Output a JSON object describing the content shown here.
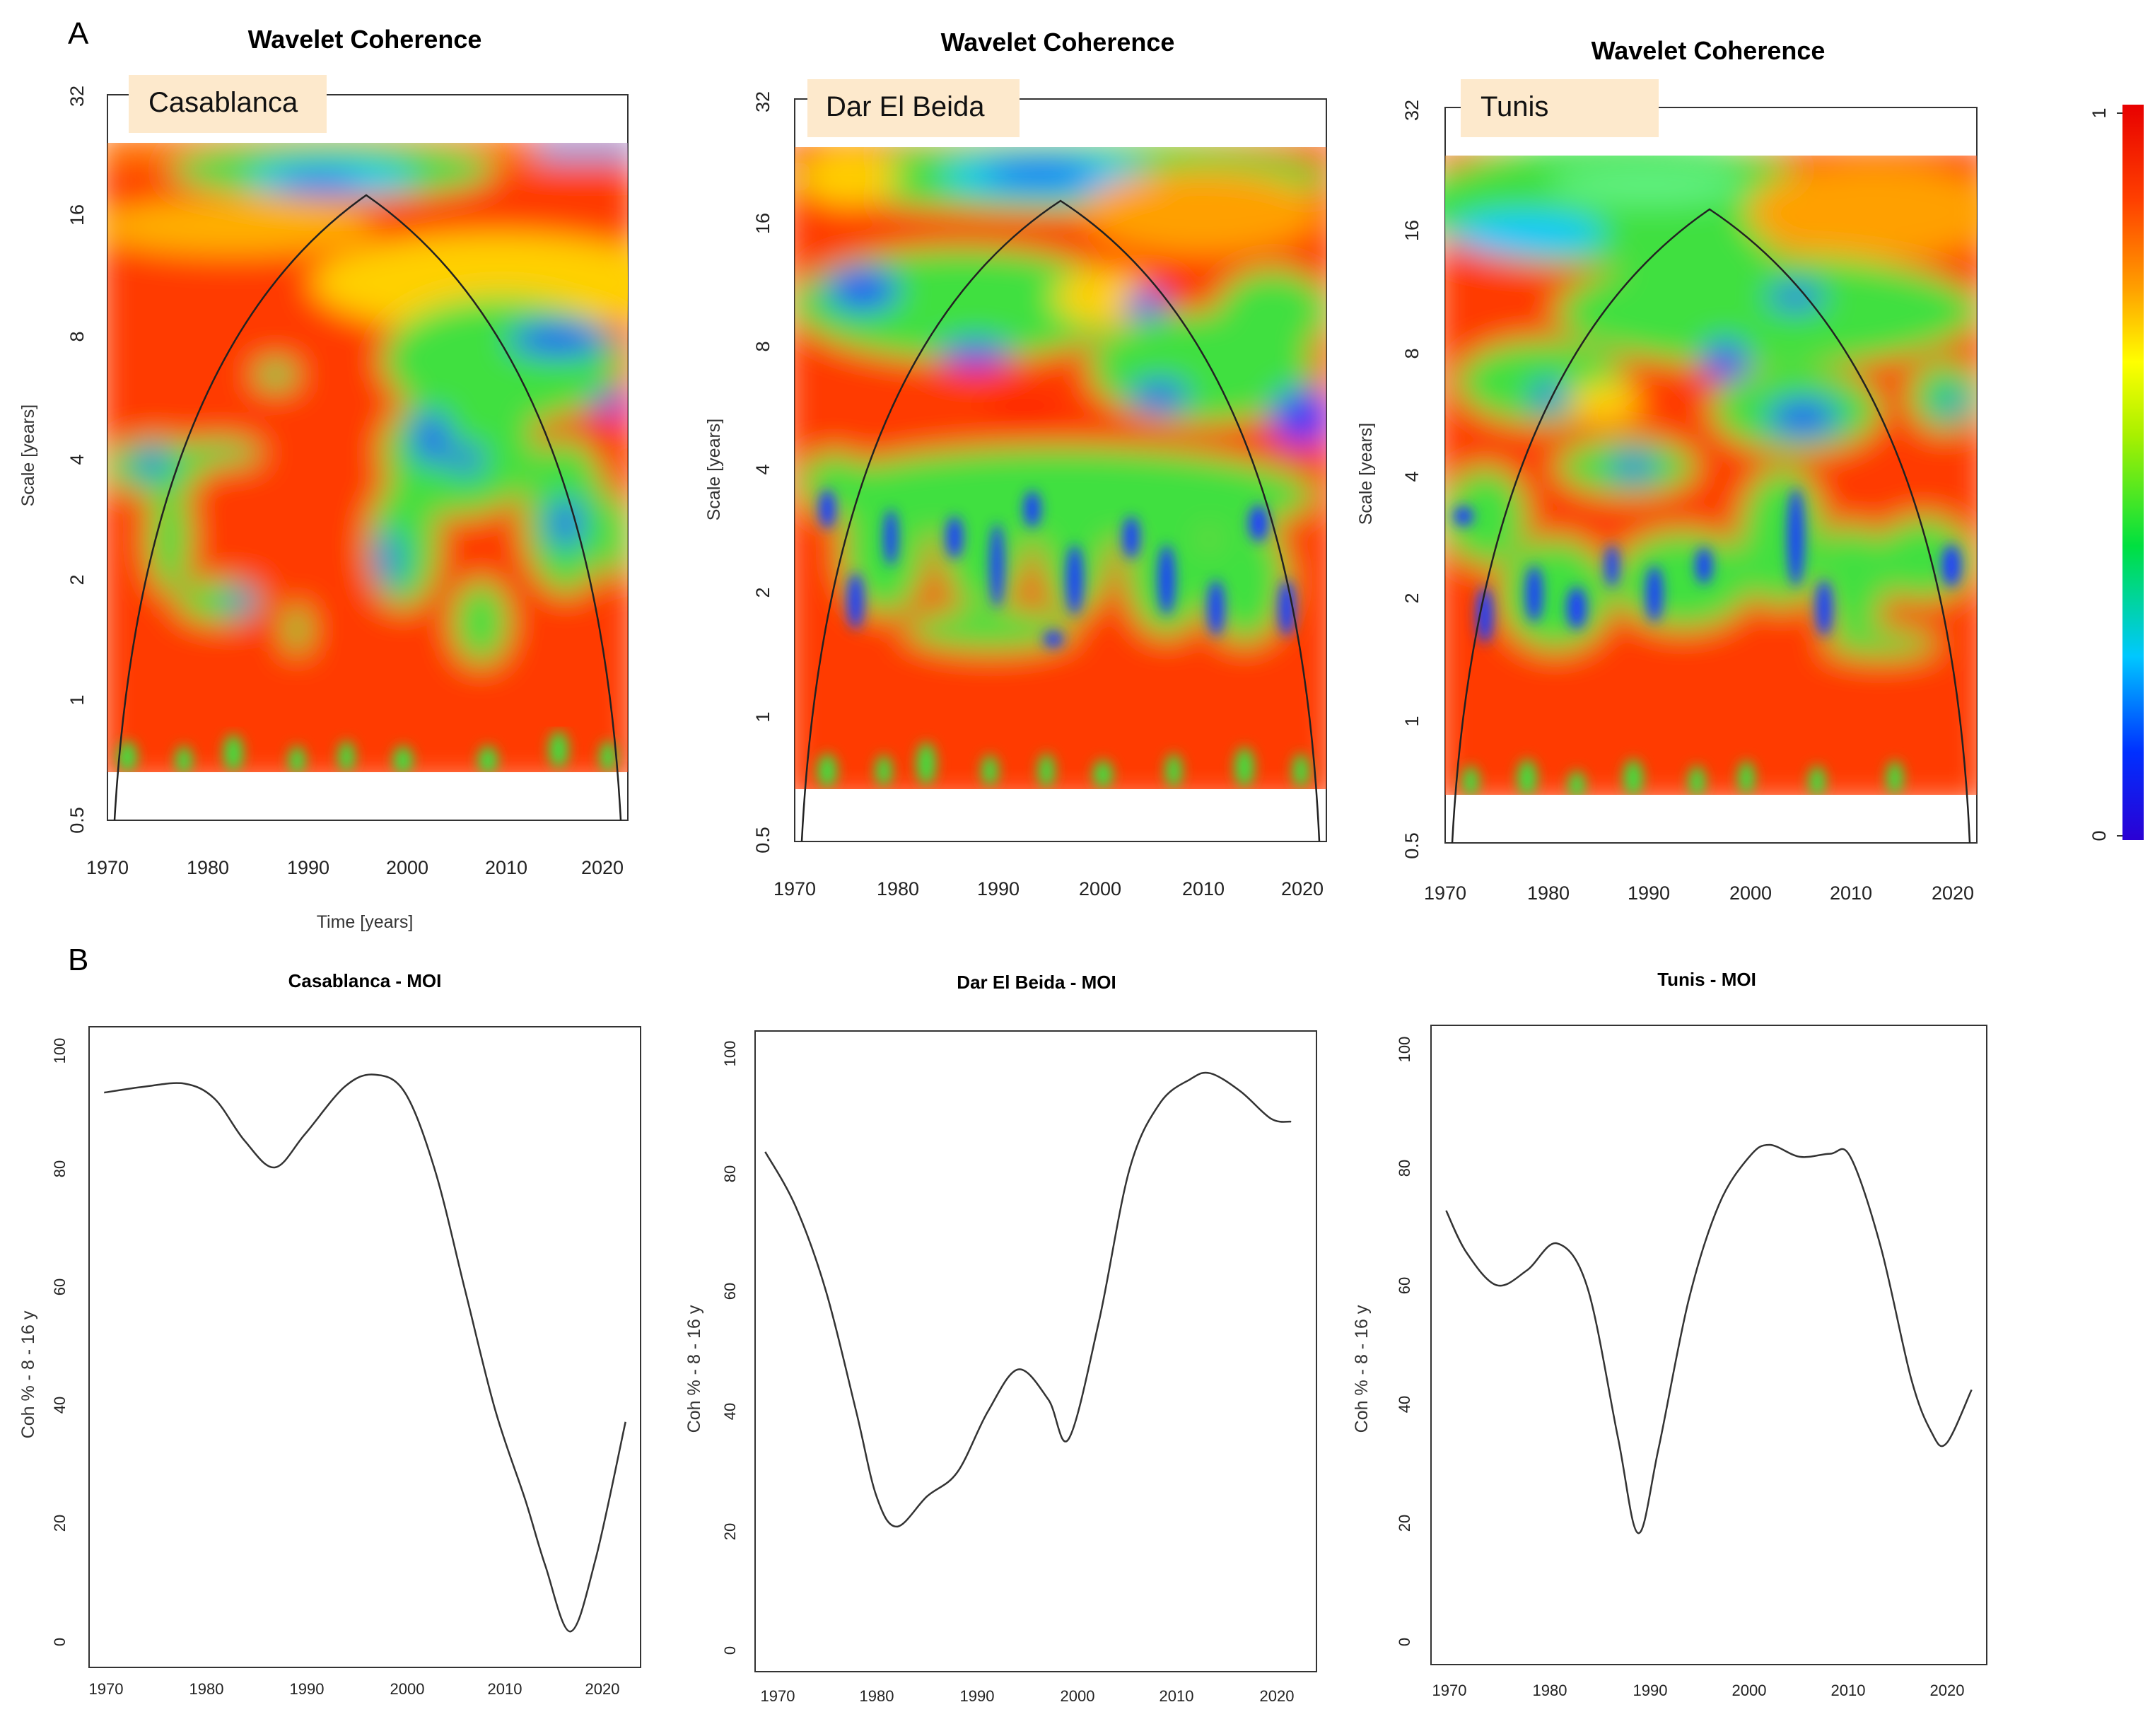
{
  "panel_labels": {
    "a": "A",
    "b": "B"
  },
  "colors": {
    "line": "#333333",
    "city_label_bg": "#fde9cc",
    "colorbar_stops": [
      "#2b00d4",
      "#0030ff",
      "#00c8ff",
      "#00e040",
      "#a8f000",
      "#ffff00",
      "#ffa000",
      "#ff4000",
      "#e80000"
    ]
  },
  "colorbar": {
    "min_label": "0",
    "max_label": "1"
  },
  "chart_data": [
    {
      "type": "heatmap",
      "title": "Wavelet Coherence",
      "label": "Casablanca",
      "xlabel": "Time [years]",
      "ylabel": "Scale [years]",
      "x_ticks": [
        "1970",
        "1980",
        "1990",
        "2000",
        "2010",
        "2020"
      ],
      "y_ticks": [
        "0.5",
        "1",
        "2",
        "4",
        "8",
        "16",
        "32"
      ],
      "xlim": [
        1970,
        2022
      ],
      "ylim": [
        0.5,
        32
      ],
      "cone_of_influence_apex": {
        "year": 1996,
        "scale_years": 18
      },
      "description_values": "coherence 0-1; high (red) at scales below 2 years and around 16 years early; low (blue) near 8 years after 2010 and near 22 years around 1990-2000"
    },
    {
      "type": "heatmap",
      "title": "Wavelet Coherence",
      "label": "Dar El Beida",
      "xlabel": "",
      "ylabel": "Scale [years]",
      "x_ticks": [
        "1970",
        "1980",
        "1990",
        "2000",
        "2010",
        "2020"
      ],
      "y_ticks": [
        "0.5",
        "1",
        "2",
        "4",
        "8",
        "16",
        "32"
      ],
      "xlim": [
        1970,
        2022
      ],
      "ylim": [
        0.5,
        32
      ],
      "cone_of_influence_apex": {
        "year": 1996,
        "scale_years": 17
      }
    },
    {
      "type": "heatmap",
      "title": "Wavelet Coherence",
      "label": "Tunis",
      "xlabel": "",
      "ylabel": "Scale [years]",
      "x_ticks": [
        "1970",
        "1980",
        "1990",
        "2000",
        "2010",
        "2020"
      ],
      "y_ticks": [
        "0.5",
        "1",
        "2",
        "4",
        "8",
        "16",
        "32"
      ],
      "xlim": [
        1970,
        2022
      ],
      "ylim": [
        0.5,
        32
      ],
      "cone_of_influence_apex": {
        "year": 1996,
        "scale_years": 17
      }
    },
    {
      "type": "line",
      "title": "Casablanca - MOI",
      "ylabel": "Coh % - 8 - 16 y",
      "x_ticks": [
        "1970",
        "1980",
        "1990",
        "2000",
        "2010",
        "2020"
      ],
      "y_ticks": [
        "0",
        "20",
        "40",
        "60",
        "80",
        "100"
      ],
      "xlim": [
        1968.5,
        2023.5
      ],
      "ylim": [
        -3,
        104
      ],
      "x": [
        1970,
        1974,
        1978,
        1981,
        1984,
        1987,
        1990,
        1994,
        1997,
        2000,
        2003,
        2006,
        2009,
        2012,
        2014,
        2016.5,
        2019,
        2022
      ],
      "y": [
        93,
        94,
        94.5,
        92,
        85,
        80.5,
        86,
        94,
        96,
        93,
        80,
        60,
        40,
        25,
        14,
        3,
        15,
        38
      ]
    },
    {
      "type": "line",
      "title": "Dar El Beida - MOI",
      "ylabel": "Coh % - 8 - 16 y",
      "x_ticks": [
        "1970",
        "1980",
        "1990",
        "2000",
        "2010",
        "2020"
      ],
      "y_ticks": [
        "0",
        "20",
        "40",
        "60",
        "80",
        "100"
      ],
      "xlim": [
        1969,
        2024.5
      ],
      "ylim": [
        -3,
        103
      ],
      "x": [
        1970,
        1973,
        1976,
        1979,
        1981,
        1983,
        1986,
        1989,
        1992,
        1995,
        1998,
        2000,
        2003,
        2006,
        2009,
        2012,
        2014,
        2017,
        2020,
        2022
      ],
      "y": [
        83,
        74,
        60,
        40,
        26,
        21,
        26,
        30,
        40,
        47,
        42,
        35.5,
        55,
        80,
        91,
        95,
        96,
        93,
        88.5,
        88
      ]
    },
    {
      "type": "line",
      "title": "Tunis - MOI",
      "ylabel": "Coh % - 8 - 16 y",
      "x_ticks": [
        "1970",
        "1980",
        "1990",
        "2000",
        "2010",
        "2020"
      ],
      "y_ticks": [
        "0",
        "20",
        "40",
        "60",
        "80",
        "100"
      ],
      "xlim": [
        1968.5,
        2023.5
      ],
      "ylim": [
        -3,
        104
      ],
      "x": [
        1970,
        1972,
        1975,
        1978,
        1981,
        1984,
        1987,
        1989,
        1991,
        1994,
        1997,
        2000,
        2002,
        2005,
        2008,
        2010,
        2013,
        2016,
        2018,
        2019.5,
        2022
      ],
      "y": [
        73,
        66,
        60.5,
        63,
        67.5,
        60,
        35,
        19,
        33,
        58,
        74,
        82,
        84,
        82,
        82.5,
        82,
        67,
        45,
        36,
        34,
        43
      ]
    }
  ]
}
